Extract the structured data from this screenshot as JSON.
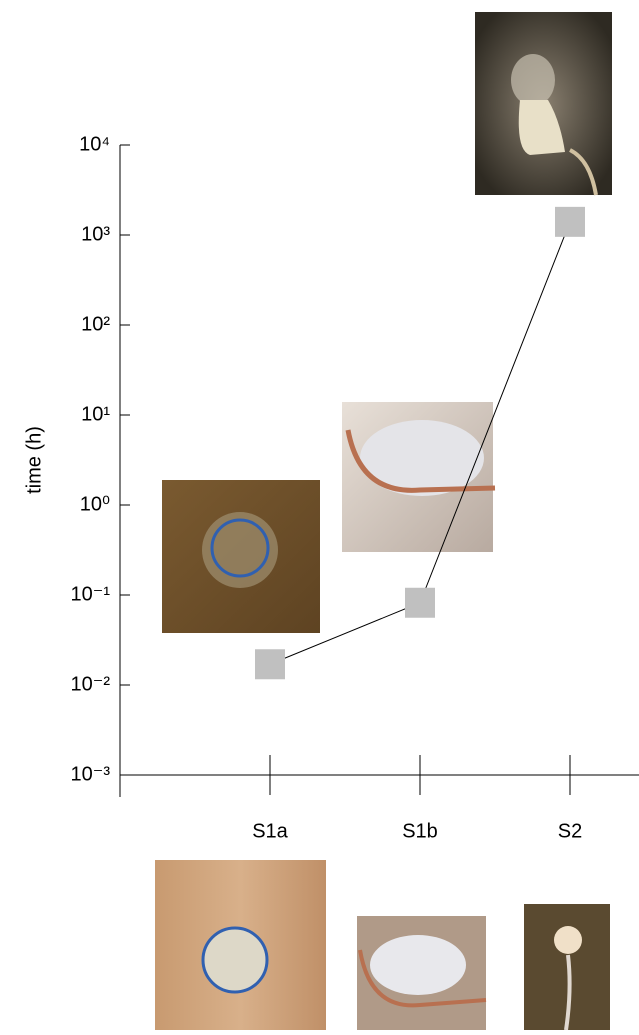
{
  "chart_data": {
    "type": "line",
    "y_label": "time (h)",
    "categories": [
      "S1a",
      "S1b",
      "S2"
    ],
    "values": [
      0.017,
      0.082,
      1400
    ],
    "color": "#c0c0c0",
    "line_color": "#000000",
    "log_y": true,
    "ylim": [
      0.001,
      10000
    ],
    "yticks": [
      {
        "value": 0.001,
        "label": "10⁻³"
      },
      {
        "value": 0.01,
        "label": "10⁻²"
      },
      {
        "value": 0.1,
        "label": "10⁻¹"
      },
      {
        "value": 1,
        "label": "10⁰"
      },
      {
        "value": 10,
        "label": "10¹"
      },
      {
        "value": 100,
        "label": "10²"
      },
      {
        "value": 1000,
        "label": "10³"
      },
      {
        "value": 10000,
        "label": "10⁴"
      }
    ]
  }
}
